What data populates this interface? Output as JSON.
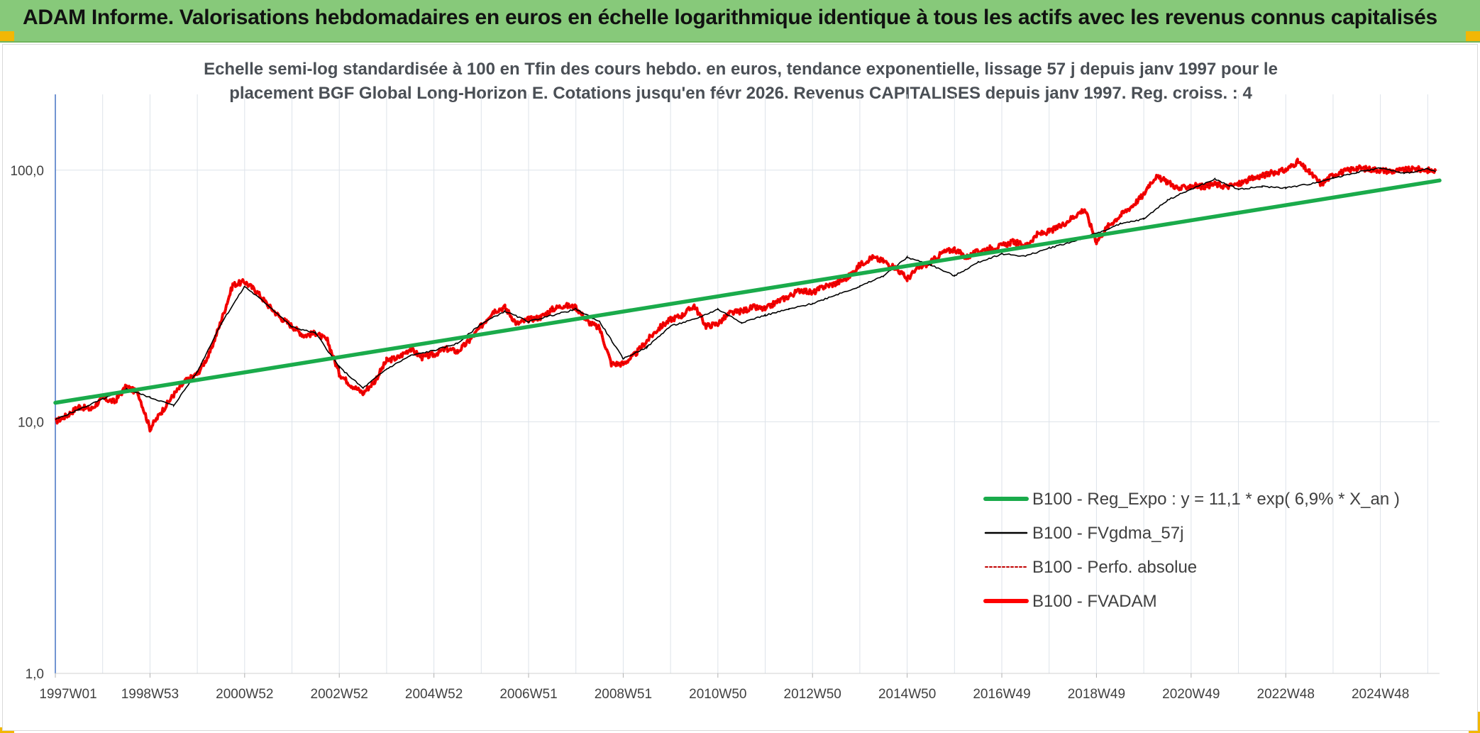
{
  "banner": {
    "title": "ADAM Informe. Valorisations hebdomadaires en euros en échelle logarithmique identique à tous les actifs avec les revenus connus capitalisés",
    "background": "#87c97a",
    "corner_color": "#f2b705"
  },
  "chart_data": {
    "type": "line",
    "subtitle_lines": [
      "Echelle semi-log standardisée à 100 en Tfin des cours hebdo. en euros, tendance exponentielle, lissage 57 j depuis janv 1997 pour le",
      "placement BGF Global Long-Horizon E. Cotations jusqu'en févr 2026. Revenus CAPITALISES depuis janv 1997. Reg. croiss. : 4"
    ],
    "y_scale": "log",
    "ylim": [
      1,
      200
    ],
    "y_ticks": [
      {
        "value": 1,
        "label": "1,0"
      },
      {
        "value": 10,
        "label": "10,0"
      },
      {
        "value": 100,
        "label": "100,0"
      }
    ],
    "x_unit": "years",
    "xlim": [
      1997.0,
      2026.25
    ],
    "x_ticks": [
      {
        "value": 1997.0,
        "label": "1997W01"
      },
      {
        "value": 1999.0,
        "label": "1998W53"
      },
      {
        "value": 2001.0,
        "label": "2000W52"
      },
      {
        "value": 2003.0,
        "label": "2002W52"
      },
      {
        "value": 2005.0,
        "label": "2004W52"
      },
      {
        "value": 2007.0,
        "label": "2006W51"
      },
      {
        "value": 2009.0,
        "label": "2008W51"
      },
      {
        "value": 2011.0,
        "label": "2010W50"
      },
      {
        "value": 2013.0,
        "label": "2012W50"
      },
      {
        "value": 2015.0,
        "label": "2014W50"
      },
      {
        "value": 2017.0,
        "label": "2016W49"
      },
      {
        "value": 2019.0,
        "label": "2018W49"
      },
      {
        "value": 2021.0,
        "label": "2020W49"
      },
      {
        "value": 2023.0,
        "label": "2022W48"
      },
      {
        "value": 2025.0,
        "label": "2024W48"
      }
    ],
    "grid": "vertical-and-horizontal",
    "legend_position": "bottom-right",
    "series": [
      {
        "name": "B100 - Reg_Expo : y = 11,1 * exp( 6,9% *  X_an )",
        "color": "#1aab4b",
        "style": "solid-thick",
        "x": [
          1997.0,
          2026.25
        ],
        "y": [
          11.9,
          91.0
        ]
      },
      {
        "name": "B100 - FVgdma_57j",
        "color": "#000000",
        "style": "solid-thin",
        "x": [
          1997.0,
          1997.5,
          1998.0,
          1998.5,
          1999.0,
          1999.5,
          2000.0,
          2000.5,
          2001.0,
          2001.5,
          2002.0,
          2002.5,
          2003.0,
          2003.5,
          2004.0,
          2004.5,
          2005.0,
          2005.5,
          2006.0,
          2006.5,
          2007.0,
          2007.5,
          2008.0,
          2008.5,
          2009.0,
          2009.5,
          2010.0,
          2010.5,
          2011.0,
          2011.5,
          2012.0,
          2012.5,
          2013.0,
          2013.5,
          2014.0,
          2014.5,
          2015.0,
          2015.5,
          2016.0,
          2016.5,
          2017.0,
          2017.5,
          2018.0,
          2018.5,
          2019.0,
          2019.5,
          2020.0,
          2020.5,
          2021.0,
          2021.5,
          2022.0,
          2022.5,
          2023.0,
          2023.5,
          2024.0,
          2024.5,
          2025.0,
          2025.5,
          2026.0,
          2026.17
        ],
        "y": [
          10.2,
          11.2,
          12.3,
          13.5,
          12.5,
          11.6,
          15.8,
          24.5,
          34.5,
          29.0,
          23.8,
          22.5,
          16.5,
          13.6,
          16.2,
          18.3,
          19.2,
          20.5,
          24.5,
          27.5,
          25.0,
          26.5,
          28.0,
          25.0,
          17.8,
          19.8,
          24.0,
          25.5,
          28.0,
          24.8,
          26.5,
          28.0,
          29.5,
          32.0,
          34.5,
          38.0,
          45.0,
          42.0,
          38.0,
          43.0,
          46.5,
          45.5,
          49.0,
          52.0,
          56.0,
          61.0,
          64.0,
          76.0,
          84.0,
          92.0,
          84.0,
          86.0,
          85.0,
          88.0,
          93.0,
          98.0,
          102.0,
          97.0,
          101.0,
          99.0
        ]
      },
      {
        "name": "B100 - Perfo. absolue",
        "color": "#c00000",
        "style": "dotted"
      },
      {
        "name": "B100 - FVADAM",
        "color": "#ff0000",
        "style": "solid-thick",
        "x": [
          1997.0,
          1997.25,
          1997.5,
          1997.75,
          1998.0,
          1998.25,
          1998.5,
          1998.75,
          1999.0,
          1999.25,
          1999.5,
          1999.75,
          2000.0,
          2000.25,
          2000.5,
          2000.75,
          2001.0,
          2001.25,
          2001.5,
          2001.75,
          2002.0,
          2002.25,
          2002.5,
          2002.75,
          2003.0,
          2003.25,
          2003.5,
          2003.75,
          2004.0,
          2004.25,
          2004.5,
          2004.75,
          2005.0,
          2005.25,
          2005.5,
          2005.75,
          2006.0,
          2006.25,
          2006.5,
          2006.75,
          2007.0,
          2007.25,
          2007.5,
          2007.75,
          2008.0,
          2008.25,
          2008.5,
          2008.75,
          2009.0,
          2009.25,
          2009.5,
          2009.75,
          2010.0,
          2010.25,
          2010.5,
          2010.75,
          2011.0,
          2011.25,
          2011.5,
          2011.75,
          2012.0,
          2012.25,
          2012.5,
          2012.75,
          2013.0,
          2013.25,
          2013.5,
          2013.75,
          2014.0,
          2014.25,
          2014.5,
          2014.75,
          2015.0,
          2015.25,
          2015.5,
          2015.75,
          2016.0,
          2016.25,
          2016.5,
          2016.75,
          2017.0,
          2017.25,
          2017.5,
          2017.75,
          2018.0,
          2018.25,
          2018.5,
          2018.75,
          2019.0,
          2019.25,
          2019.5,
          2019.75,
          2020.0,
          2020.1,
          2020.25,
          2020.5,
          2020.75,
          2021.0,
          2021.25,
          2021.5,
          2021.75,
          2022.0,
          2022.25,
          2022.5,
          2022.75,
          2023.0,
          2023.25,
          2023.5,
          2023.75,
          2024.0,
          2024.25,
          2024.5,
          2024.75,
          2025.0,
          2025.25,
          2025.5,
          2025.75,
          2026.0,
          2026.17
        ],
        "y": [
          10.0,
          10.6,
          11.5,
          11.2,
          12.4,
          12.0,
          13.8,
          13.0,
          9.4,
          11.0,
          12.8,
          14.5,
          15.5,
          18.5,
          25.0,
          35.0,
          36.0,
          33.0,
          29.0,
          26.0,
          24.0,
          22.0,
          22.5,
          21.0,
          15.5,
          14.0,
          13.0,
          14.5,
          17.5,
          18.0,
          19.5,
          18.0,
          18.5,
          19.5,
          19.0,
          21.0,
          24.0,
          27.5,
          28.5,
          24.5,
          25.5,
          26.0,
          28.0,
          29.0,
          28.5,
          25.0,
          23.5,
          17.0,
          17.0,
          18.5,
          21.0,
          23.5,
          25.5,
          26.5,
          29.0,
          24.0,
          24.5,
          27.0,
          27.5,
          28.5,
          28.0,
          30.0,
          31.5,
          33.5,
          32.5,
          34.5,
          35.5,
          37.5,
          42.0,
          45.0,
          43.5,
          41.0,
          37.0,
          41.0,
          43.0,
          47.0,
          48.5,
          45.0,
          47.5,
          49.0,
          50.0,
          52.0,
          50.0,
          55.5,
          57.0,
          60.0,
          65.0,
          70.0,
          52.0,
          60.0,
          66.0,
          72.0,
          80.0,
          87.0,
          94.0,
          90.0,
          84.0,
          87.0,
          86.0,
          88.0,
          86.0,
          88.0,
          92.0,
          95.0,
          98.0,
          100.0,
          108.0,
          98.0,
          88.0,
          96.0,
          99.0,
          102.0,
          101.0,
          100.0,
          99.0,
          100.0,
          101.0,
          100.0,
          99.0
        ]
      }
    ]
  }
}
